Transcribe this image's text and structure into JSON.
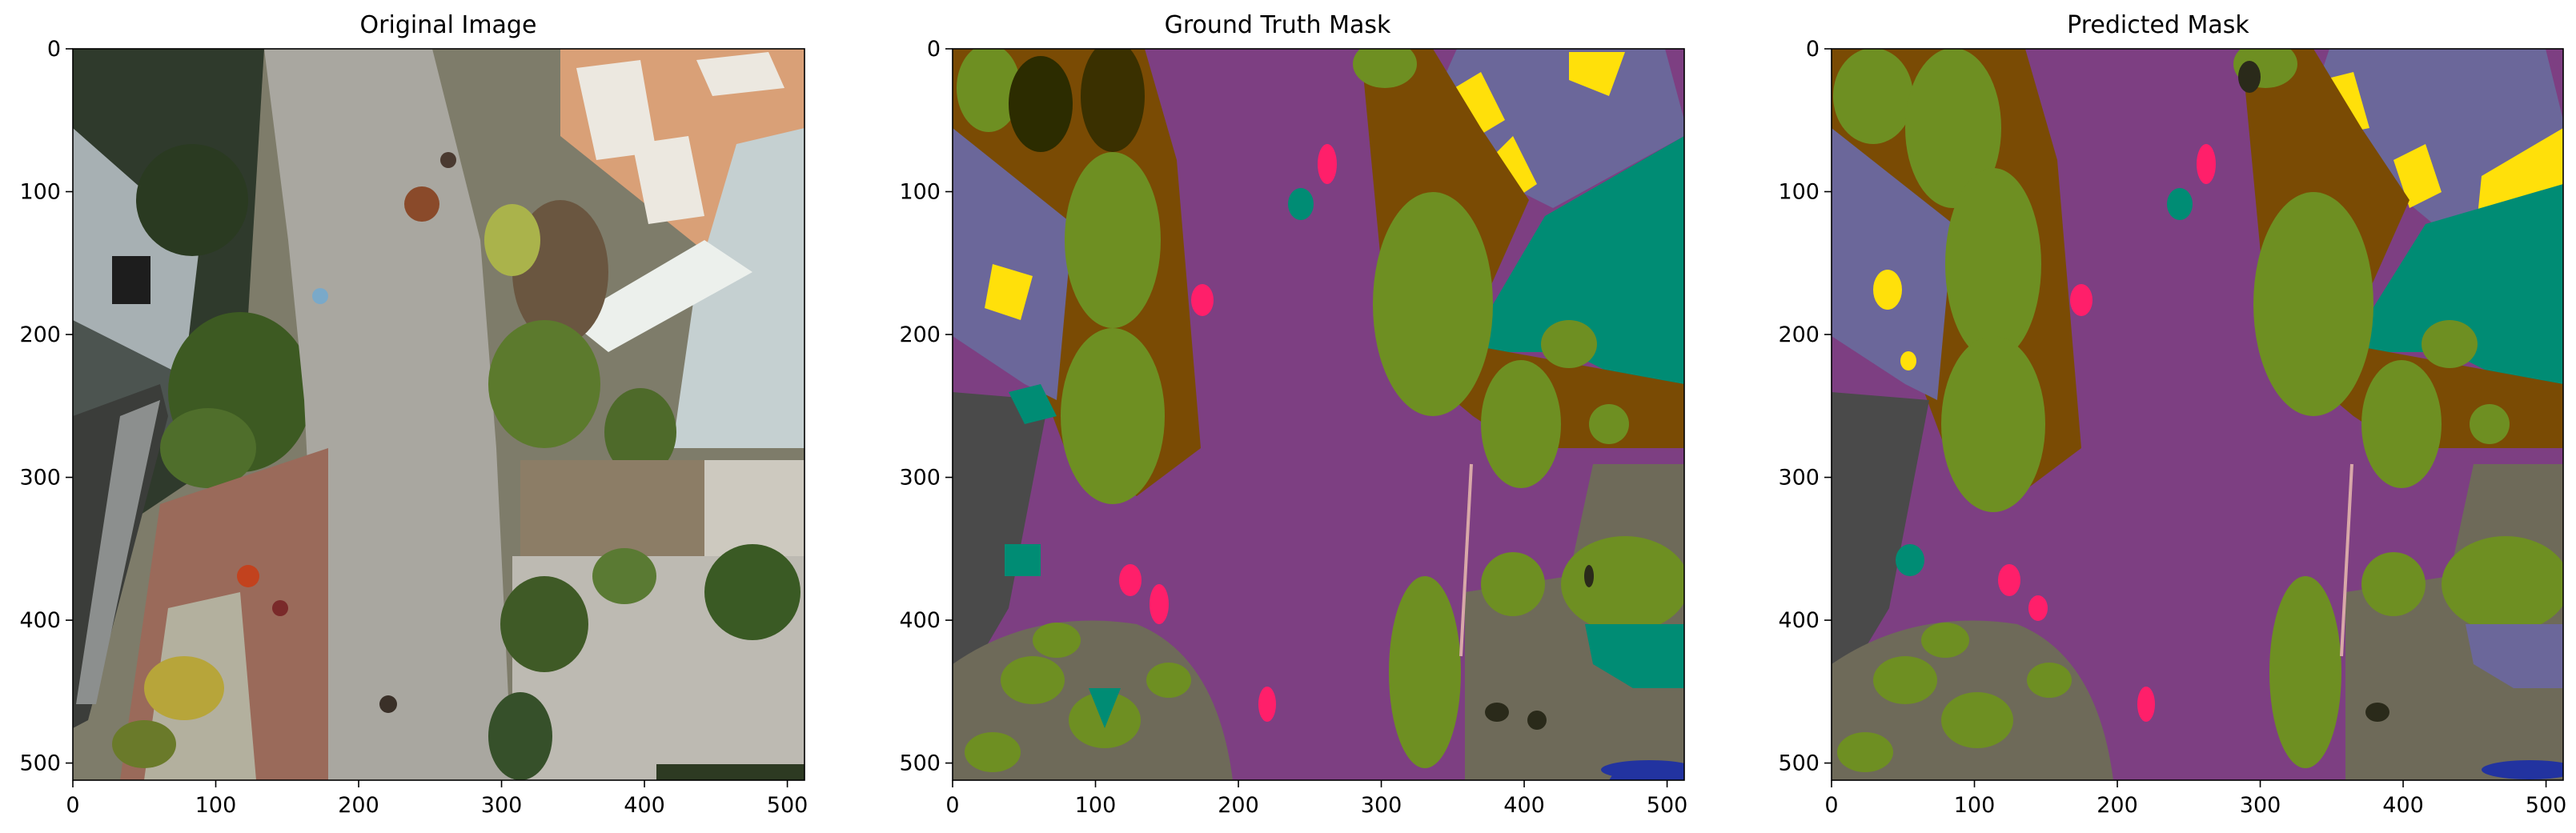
{
  "panels": [
    {
      "title": "Original Image",
      "kind": "photo"
    },
    {
      "title": "Ground Truth Mask",
      "kind": "mask"
    },
    {
      "title": "Predicted Mask",
      "kind": "mask"
    }
  ],
  "axes": {
    "x_ticks": [
      "0",
      "100",
      "200",
      "300",
      "400",
      "500"
    ],
    "y_ticks": [
      "0",
      "100",
      "200",
      "300",
      "400",
      "500"
    ],
    "x_tick_values": [
      0,
      100,
      200,
      300,
      400,
      500
    ],
    "y_tick_values": [
      0,
      100,
      200,
      300,
      400,
      500
    ],
    "extent": [
      0,
      512
    ]
  },
  "class_colors": {
    "road": "#7d3f82",
    "tree": "#6e8f22",
    "roof": "#6b679a",
    "window": "#ffe00a",
    "vegetation": "#7a4b04",
    "gravel": "#6e6a59",
    "grass": "#008c74",
    "person": "#ff1f6a",
    "car": "#2233a0",
    "wall": "#4a4a4a",
    "fence": "#d8a8a8",
    "rock": "#2a2a1a"
  }
}
